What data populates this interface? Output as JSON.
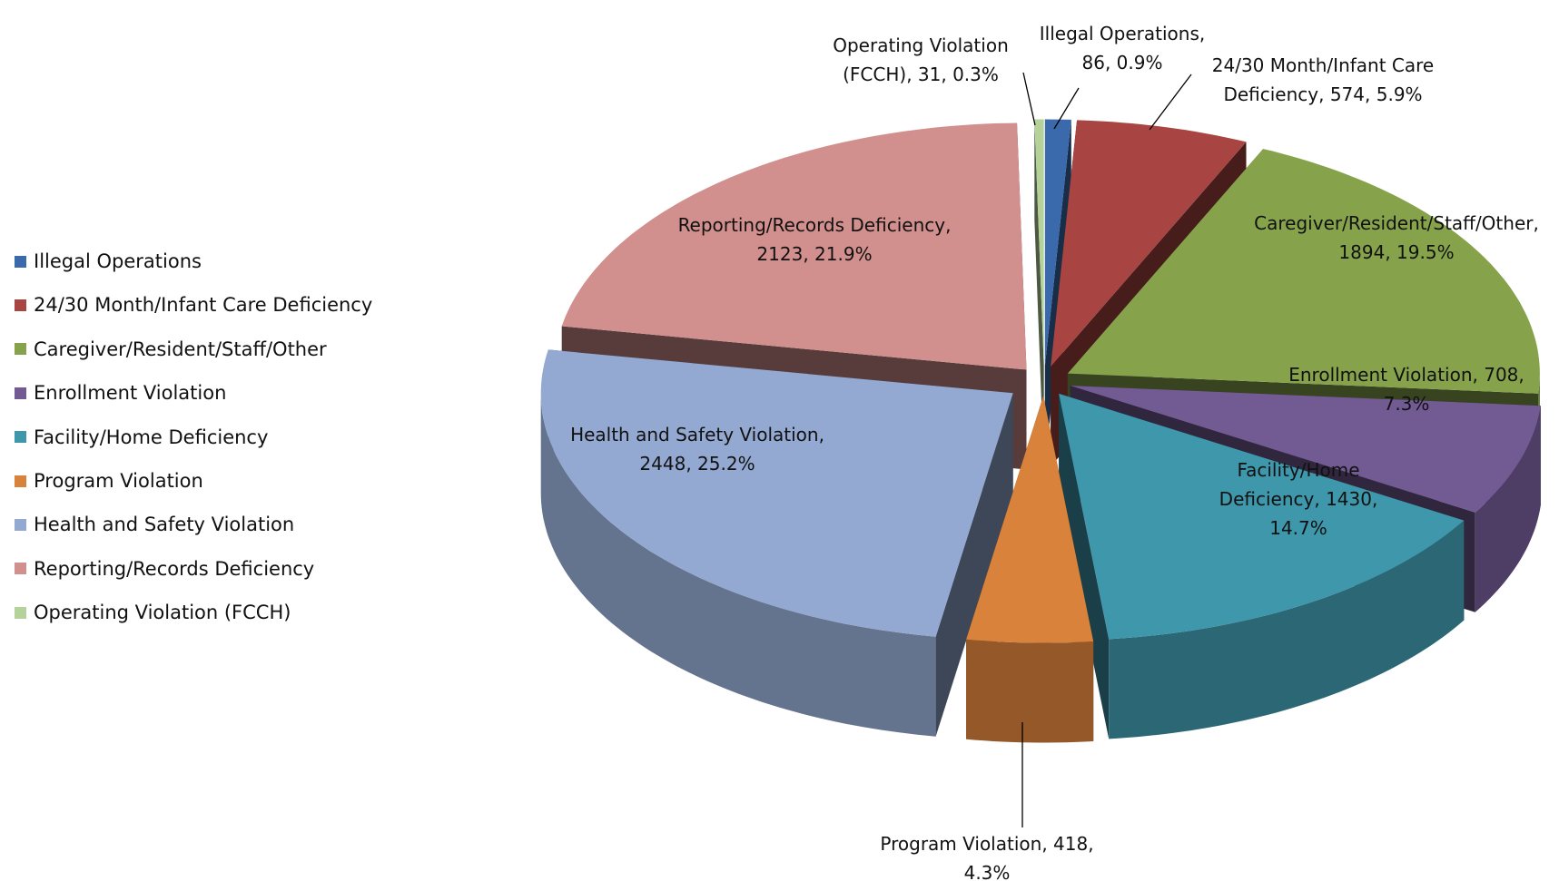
{
  "chart_data": {
    "type": "pie3d",
    "categories": [
      "Illegal Operations",
      "24/30 Month/Infant Care Deficiency",
      "Caregiver/Resident/Staff/Other",
      "Enrollment Violation",
      "Facility/Home Deficiency",
      "Program Violation",
      "Health and Safety Violation",
      "Reporting/Records Deficiency",
      "Operating Violation (FCCH)"
    ],
    "values": [
      86,
      574,
      1894,
      708,
      1430,
      418,
      2448,
      2123,
      31
    ],
    "percent_labels": [
      "0.9%",
      "5.9%",
      "19.5%",
      "7.3%",
      "14.7%",
      "4.3%",
      "25.2%",
      "21.9%",
      "0.3%"
    ],
    "label_separator": ",",
    "colors": [
      "#3a6aab",
      "#a84441",
      "#86a34c",
      "#725a93",
      "#3f97ab",
      "#d9823c",
      "#93a9d1",
      "#d18f8d",
      "#b6d29b"
    ],
    "legend": "left"
  }
}
